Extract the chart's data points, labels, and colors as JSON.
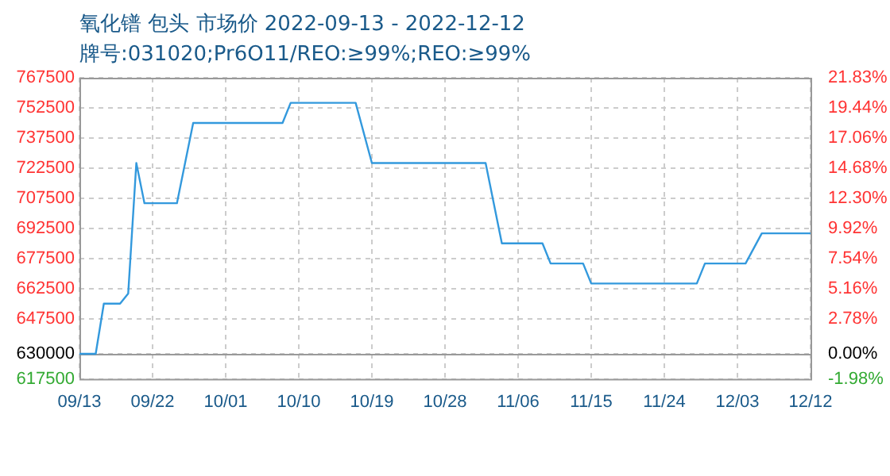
{
  "chart_data": {
    "type": "line",
    "title": "氧化镨 包头 市场价 2022-09-13 - 2022-12-12",
    "subtitle": "牌号:031020;Pr6O11/REO:≥99%;REO:≥99%",
    "x": [
      "2022-09-13",
      "2022-09-15",
      "2022-09-16",
      "2022-09-18",
      "2022-09-19",
      "2022-09-20",
      "2022-09-21",
      "2022-09-25",
      "2022-09-27",
      "2022-10-08",
      "2022-10-09",
      "2022-10-17",
      "2022-10-19",
      "2022-11-02",
      "2022-11-04",
      "2022-11-09",
      "2022-11-10",
      "2022-11-14",
      "2022-11-15",
      "2022-11-28",
      "2022-11-29",
      "2022-12-04",
      "2022-12-06",
      "2022-12-12"
    ],
    "series": [
      {
        "color": "#3399dd",
        "values": [
          630000,
          630000,
          655000,
          655000,
          660000,
          725000,
          705000,
          705000,
          745000,
          745000,
          755000,
          755000,
          725000,
          725000,
          685000,
          685000,
          675000,
          675000,
          665000,
          665000,
          675000,
          675000,
          690000,
          690000
        ]
      }
    ],
    "xlim": [
      "2022-09-13",
      "2022-12-12"
    ],
    "xticks": [
      {
        "value": "2022-09-13",
        "label": "09/13"
      },
      {
        "value": "2022-09-22",
        "label": "09/22"
      },
      {
        "value": "2022-10-01",
        "label": "10/01"
      },
      {
        "value": "2022-10-10",
        "label": "10/10"
      },
      {
        "value": "2022-10-19",
        "label": "10/19"
      },
      {
        "value": "2022-10-28",
        "label": "10/28"
      },
      {
        "value": "2022-11-06",
        "label": "11/06"
      },
      {
        "value": "2022-11-15",
        "label": "11/15"
      },
      {
        "value": "2022-11-24",
        "label": "11/24"
      },
      {
        "value": "2022-12-03",
        "label": "12/03"
      },
      {
        "value": "2022-12-12",
        "label": "12/12"
      }
    ],
    "ylim": [
      617500,
      767500
    ],
    "yticks": [
      617500,
      630000,
      647500,
      662500,
      677500,
      692500,
      707500,
      722500,
      737500,
      752500,
      767500
    ],
    "y2lim": [
      -1.98,
      21.83
    ],
    "y2ticks": [
      {
        "value": -1.98,
        "label": "-1.98%"
      },
      {
        "value": 0,
        "label": "0.00%"
      },
      {
        "value": 2.78,
        "label": "2.78%"
      },
      {
        "value": 5.16,
        "label": "5.16%"
      },
      {
        "value": 7.54,
        "label": "7.54%"
      },
      {
        "value": 9.92,
        "label": "9.92%"
      },
      {
        "value": 12.3,
        "label": "12.30%"
      },
      {
        "value": 14.68,
        "label": "14.68%"
      },
      {
        "value": 17.06,
        "label": "17.06%"
      },
      {
        "value": 19.44,
        "label": "19.44%"
      },
      {
        "value": 21.83,
        "label": "21.83%"
      }
    ],
    "ref_lines": [
      {
        "axis": "y2",
        "value": 0,
        "color": "#999999"
      }
    ],
    "grid": true,
    "marker": "none",
    "line_style": "solid"
  }
}
